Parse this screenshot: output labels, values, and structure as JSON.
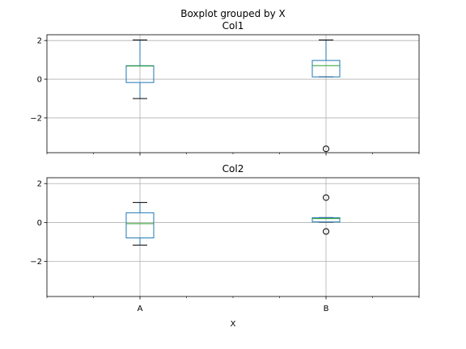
{
  "figure": {
    "suptitle": "Boxplot grouped by X",
    "xlabel": "X"
  },
  "colors": {
    "box": "#1f77b4",
    "median": "#2ca02c",
    "whisker": "#000000",
    "grid": "#b0b0b0",
    "axes_edge": "#000000",
    "flier_edge": "#000000"
  },
  "chart_data": [
    {
      "type": "boxplot",
      "title": "Col1",
      "xlabel": "X",
      "ylabel": "",
      "categories": [
        "A",
        "B"
      ],
      "ylim": [
        -3.8,
        2.3
      ],
      "yticks": [
        2,
        0,
        -2
      ],
      "ytick_labels": [
        "2",
        "0",
        "−2"
      ],
      "grid": true,
      "boxes": [
        {
          "category": "A",
          "whislo": -1.0,
          "q1": -0.17,
          "median": 0.68,
          "q3": 0.7,
          "whishi": 2.03,
          "fliers": []
        },
        {
          "category": "B",
          "whislo": 0.12,
          "q1": 0.12,
          "median": 0.7,
          "q3": 0.97,
          "whishi": 2.03,
          "fliers": [
            -3.6
          ]
        }
      ]
    },
    {
      "type": "boxplot",
      "title": "Col2",
      "xlabel": "X",
      "ylabel": "",
      "categories": [
        "A",
        "B"
      ],
      "ylim": [
        -3.8,
        2.3
      ],
      "yticks": [
        2,
        0,
        -2
      ],
      "ytick_labels": [
        "2",
        "0",
        "−2"
      ],
      "grid": true,
      "boxes": [
        {
          "category": "A",
          "whislo": -1.16,
          "q1": -0.79,
          "median": -0.06,
          "q3": 0.5,
          "whishi": 1.03,
          "fliers": []
        },
        {
          "category": "B",
          "whislo": 0.02,
          "q1": 0.03,
          "median": 0.2,
          "q3": 0.25,
          "whishi": 0.25,
          "fliers": [
            1.28,
            -0.46
          ]
        }
      ]
    }
  ]
}
